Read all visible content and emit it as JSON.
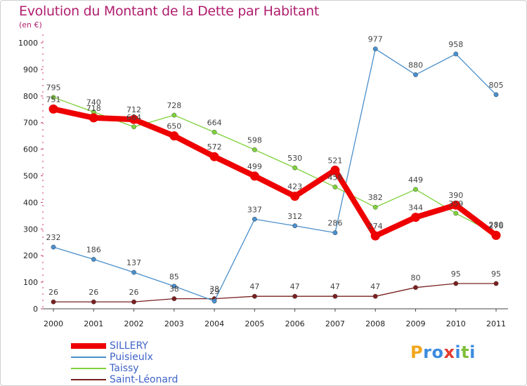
{
  "title": "Evolution du Montant de la Dette par Habitant",
  "subtitle": "(en €)",
  "brand": {
    "letters": [
      "P",
      "r",
      "o",
      "x",
      "i",
      "t",
      "i"
    ],
    "colors": [
      "#f2a61c",
      "#3d8be0",
      "#3d8be0",
      "#e63a2e",
      "#3d8be0",
      "#7fbf3a",
      "#3d8be0"
    ]
  },
  "chart_data": {
    "type": "line",
    "x": [
      "2000",
      "2001",
      "2002",
      "2003",
      "2004",
      "2005",
      "2006",
      "2007",
      "2008",
      "2009",
      "2010",
      "2011"
    ],
    "ylim": [
      0,
      1000
    ],
    "yticks": [
      0,
      100,
      200,
      300,
      400,
      500,
      600,
      700,
      800,
      900,
      1000
    ],
    "grid": false,
    "legend_position": "bottom-left",
    "series": [
      {
        "name": "SILLERY",
        "color": "#ee0000",
        "values": [
          751,
          718,
          712,
          650,
          572,
          499,
          423,
          521,
          274,
          344,
          390,
          276
        ],
        "labels": [
          "751",
          "718",
          "712",
          "650",
          "572",
          "499",
          "423",
          "521",
          "274",
          "344",
          "390",
          "276"
        ]
      },
      {
        "name": "Puisieulx",
        "color": "#4a8fcb",
        "values": [
          232,
          186,
          137,
          85,
          29,
          337,
          312,
          286,
          977,
          880,
          958,
          805
        ],
        "labels": [
          "232",
          "186",
          "137",
          "85",
          "29",
          "337",
          "312",
          "286",
          "977",
          "880",
          "958",
          "805"
        ]
      },
      {
        "name": "Taissy",
        "color": "#7fd13b",
        "values": [
          795,
          740,
          684,
          728,
          664,
          598,
          530,
          458,
          382,
          449,
          359,
          280
        ],
        "labels": [
          "795",
          "740",
          "684",
          "728",
          "664",
          "598",
          "530",
          "458",
          "382",
          "449",
          "359",
          "280"
        ]
      },
      {
        "name": "Saint-Léonard",
        "color": "#7a2020",
        "values": [
          26,
          26,
          26,
          38,
          38,
          47,
          47,
          47,
          47,
          80,
          95,
          95
        ],
        "labels": [
          "26",
          "26",
          "26",
          "38",
          "38",
          "47",
          "47",
          "47",
          "47",
          "80",
          "95",
          "95"
        ]
      }
    ]
  }
}
